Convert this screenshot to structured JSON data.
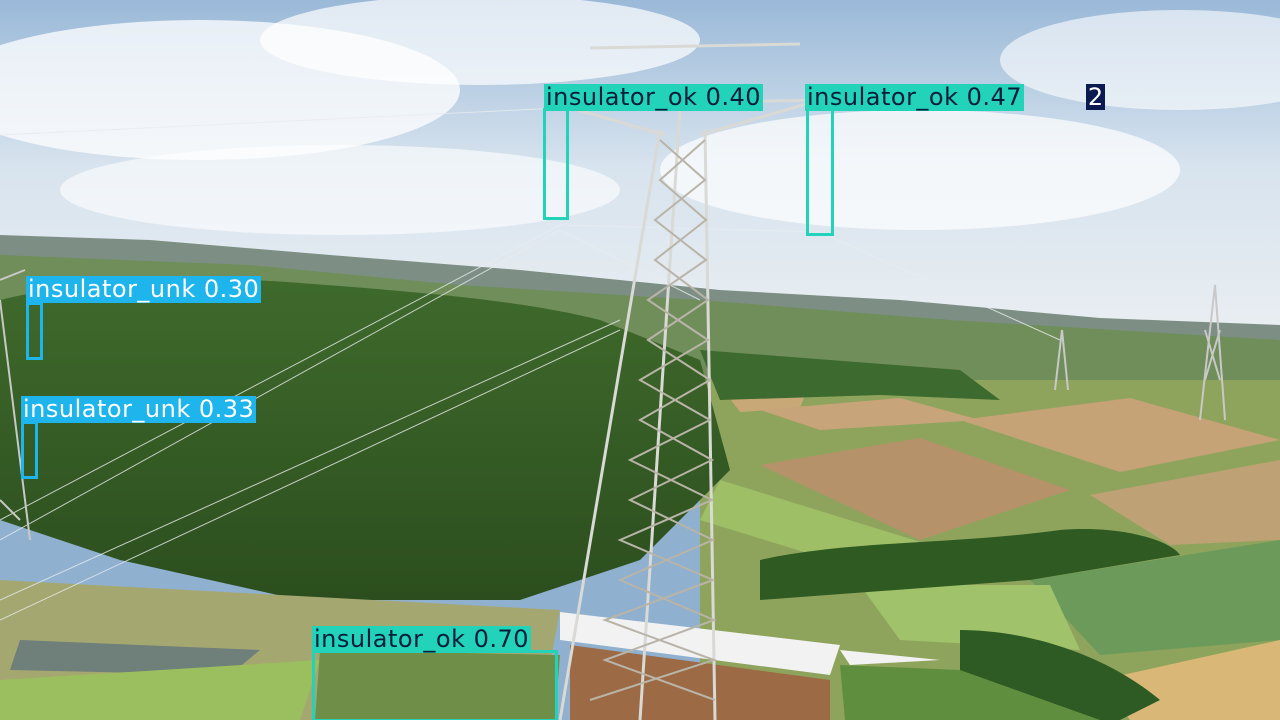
{
  "image_description": "",
  "colors": {
    "ok": "#22d3b9",
    "unk": "#1eb4ec"
  },
  "detections": [
    {
      "class": "insulator_ok",
      "label": "insulator_ok 0.40"
    },
    {
      "class": "insulator_ok",
      "label": "insulator_ok 0.47"
    },
    {
      "class": "insulator_unk",
      "label": "insulator_unk 0.30"
    },
    {
      "class": "insulator_unk",
      "label": "insulator_unk 0.33"
    },
    {
      "class": "insulator_ok",
      "label": "insulator_ok 0.70"
    }
  ],
  "overlay_text": "2"
}
